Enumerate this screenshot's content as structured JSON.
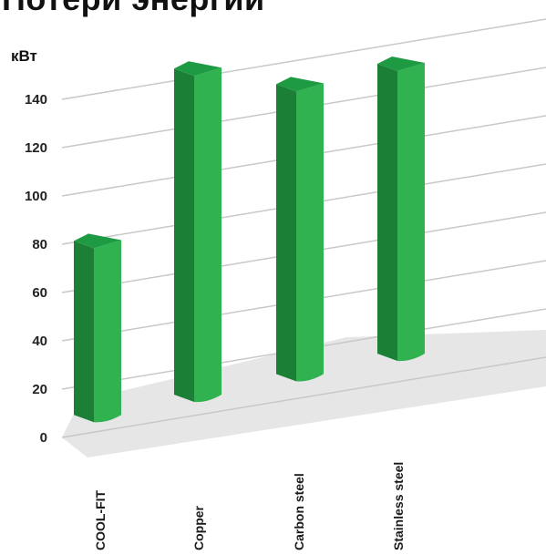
{
  "chart_data": {
    "type": "bar",
    "title": "Потери энергии",
    "ylabel": "кВт",
    "xlabel": "",
    "categories": [
      "COOL-FIT",
      "Copper",
      "Carbon steel",
      "Stainless steel"
    ],
    "values": [
      72,
      135,
      120,
      120
    ],
    "ylim": [
      0,
      140
    ],
    "yticks": [
      0,
      20,
      40,
      60,
      80,
      100,
      120,
      140
    ],
    "grid": true,
    "colors": {
      "bar_front": "#2fb24f",
      "bar_side": "#1b7f36",
      "bar_top": "#1e9a43",
      "floor": "#e2e2e2",
      "grid": "#c8c8c8"
    }
  }
}
